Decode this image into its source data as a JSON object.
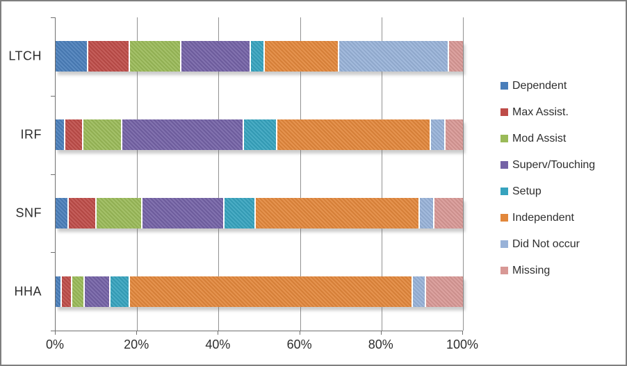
{
  "chart_data": {
    "type": "bar",
    "orientation": "horizontal",
    "stacked": true,
    "unit": "%",
    "title": "",
    "categories": [
      "LTCH",
      "IRF",
      "SNF",
      "HHA"
    ],
    "series": [
      {
        "name": "Dependent",
        "color": "#4A7EBA",
        "values": [
          8.0,
          2.4,
          3.2,
          1.5
        ]
      },
      {
        "name": "Max Assist.",
        "color": "#BE4C48",
        "values": [
          10.3,
          4.4,
          6.9,
          2.6
        ]
      },
      {
        "name": "Mod Assist",
        "color": "#9ABA58",
        "values": [
          12.6,
          9.5,
          11.2,
          3.1
        ]
      },
      {
        "name": "Superv/Touching",
        "color": "#7462A6",
        "values": [
          17.1,
          29.9,
          20.1,
          6.3
        ]
      },
      {
        "name": "Setup",
        "color": "#36A3BE",
        "values": [
          3.4,
          8.2,
          7.8,
          4.8
        ]
      },
      {
        "name": "Independent",
        "color": "#E2873B",
        "values": [
          18.2,
          37.8,
          40.2,
          69.4
        ]
      },
      {
        "name": "Did Not occur",
        "color": "#98B2D8",
        "values": [
          27.0,
          3.5,
          3.6,
          3.3
        ]
      },
      {
        "name": "Missing",
        "color": "#D89895",
        "values": [
          3.4,
          4.3,
          7.0,
          9.0
        ]
      }
    ],
    "x_axis": {
      "min": 0,
      "max": 100,
      "tick_step": 20,
      "ticks": [
        "0%",
        "20%",
        "40%",
        "60%",
        "80%",
        "100%"
      ]
    },
    "grid": true,
    "legend_position": "right"
  }
}
